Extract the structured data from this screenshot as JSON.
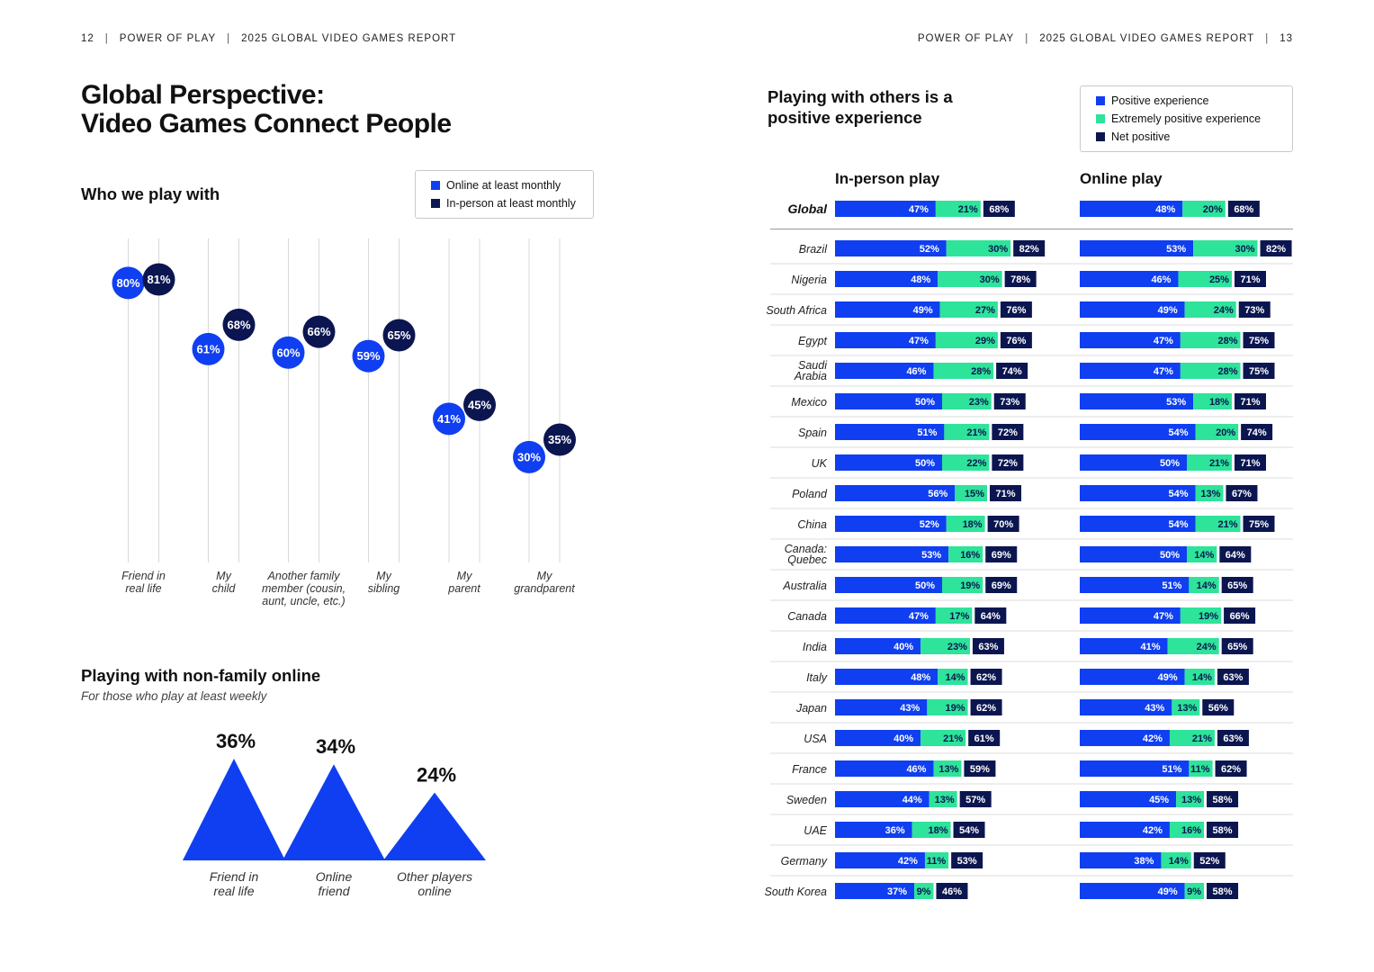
{
  "header": {
    "left_page": "12",
    "left_brand": "POWER OF PLAY",
    "left_report": "2025 GLOBAL VIDEO GAMES REPORT",
    "right_brand": "POWER OF PLAY",
    "right_report": "2025 GLOBAL VIDEO GAMES REPORT",
    "right_page": "13",
    "divider": "|"
  },
  "title": {
    "line1": "Global Perspective:",
    "line2": "Video Games Connect People"
  },
  "colors": {
    "blue": "#0f3ff0",
    "navy": "#0b1650",
    "green": "#2ee39a",
    "grid": "#d9d9d9"
  },
  "chart_data": [
    {
      "type": "scatter",
      "title": "Who we play with",
      "legend": [
        "Online at least monthly",
        "In-person at least monthly"
      ],
      "categories": [
        [
          "Friend in",
          "real life"
        ],
        [
          "My",
          "child"
        ],
        [
          "Another family",
          "member (cousin,",
          "aunt, uncle, etc.)"
        ],
        [
          "My",
          "sibling"
        ],
        [
          "My",
          "parent"
        ],
        [
          "My",
          "grandparent"
        ]
      ],
      "series": [
        {
          "name": "Online at least monthly",
          "values": [
            80,
            61,
            60,
            59,
            41,
            30
          ]
        },
        {
          "name": "In-person at least monthly",
          "values": [
            81,
            68,
            66,
            65,
            45,
            35
          ]
        }
      ],
      "unit": "%",
      "ylim": [
        0,
        100
      ]
    },
    {
      "type": "area",
      "title": "Playing with non-family online",
      "subtitle": "For those who play at least weekly",
      "categories": [
        [
          "Friend in",
          "real life"
        ],
        [
          "Online",
          "friend"
        ],
        [
          "Other players",
          "online"
        ]
      ],
      "values": [
        36,
        34,
        24
      ],
      "unit": "%"
    },
    {
      "type": "bar",
      "title": "Playing with others is a positive experience",
      "legend": [
        "Positive experience",
        "Extremely positive experience",
        "Net positive"
      ],
      "panels": [
        "In-person play",
        "Online play"
      ],
      "global": {
        "label": "Global",
        "in_person": {
          "positive": 47,
          "extremely": 21,
          "net": 68
        },
        "online": {
          "positive": 48,
          "extremely": 20,
          "net": 68
        }
      },
      "countries": [
        {
          "name": [
            "Brazil"
          ],
          "in_person": [
            52,
            30,
            82
          ],
          "online": [
            53,
            30,
            82
          ]
        },
        {
          "name": [
            "Nigeria"
          ],
          "in_person": [
            48,
            30,
            78
          ],
          "online": [
            46,
            25,
            71
          ]
        },
        {
          "name": [
            "South Africa"
          ],
          "in_person": [
            49,
            27,
            76
          ],
          "online": [
            49,
            24,
            73
          ]
        },
        {
          "name": [
            "Egypt"
          ],
          "in_person": [
            47,
            29,
            76
          ],
          "online": [
            47,
            28,
            75
          ]
        },
        {
          "name": [
            "Saudi",
            "Arabia"
          ],
          "in_person": [
            46,
            28,
            74
          ],
          "online": [
            47,
            28,
            75
          ]
        },
        {
          "name": [
            "Mexico"
          ],
          "in_person": [
            50,
            23,
            73
          ],
          "online": [
            53,
            18,
            71
          ]
        },
        {
          "name": [
            "Spain"
          ],
          "in_person": [
            51,
            21,
            72
          ],
          "online": [
            54,
            20,
            74
          ]
        },
        {
          "name": [
            "UK"
          ],
          "in_person": [
            50,
            22,
            72
          ],
          "online": [
            50,
            21,
            71
          ]
        },
        {
          "name": [
            "Poland"
          ],
          "in_person": [
            56,
            15,
            71
          ],
          "online": [
            54,
            13,
            67
          ]
        },
        {
          "name": [
            "China"
          ],
          "in_person": [
            52,
            18,
            70
          ],
          "online": [
            54,
            21,
            75
          ]
        },
        {
          "name": [
            "Canada:",
            "Quebec"
          ],
          "in_person": [
            53,
            16,
            69
          ],
          "online": [
            50,
            14,
            64
          ]
        },
        {
          "name": [
            "Australia"
          ],
          "in_person": [
            50,
            19,
            69
          ],
          "online": [
            51,
            14,
            65
          ]
        },
        {
          "name": [
            "Canada"
          ],
          "in_person": [
            47,
            17,
            64
          ],
          "online": [
            47,
            19,
            66
          ]
        },
        {
          "name": [
            "India"
          ],
          "in_person": [
            40,
            23,
            63
          ],
          "online": [
            41,
            24,
            65
          ]
        },
        {
          "name": [
            "Italy"
          ],
          "in_person": [
            48,
            14,
            62
          ],
          "online": [
            49,
            14,
            63
          ]
        },
        {
          "name": [
            "Japan"
          ],
          "in_person": [
            43,
            19,
            62
          ],
          "online": [
            43,
            13,
            56
          ]
        },
        {
          "name": [
            "USA"
          ],
          "in_person": [
            40,
            21,
            61
          ],
          "online": [
            42,
            21,
            63
          ]
        },
        {
          "name": [
            "France"
          ],
          "in_person": [
            46,
            13,
            59
          ],
          "online": [
            51,
            11,
            62
          ]
        },
        {
          "name": [
            "Sweden"
          ],
          "in_person": [
            44,
            13,
            57
          ],
          "online": [
            45,
            13,
            58
          ]
        },
        {
          "name": [
            "UAE"
          ],
          "in_person": [
            36,
            18,
            54
          ],
          "online": [
            42,
            16,
            58
          ]
        },
        {
          "name": [
            "Germany"
          ],
          "in_person": [
            42,
            11,
            53
          ],
          "online": [
            38,
            14,
            52
          ]
        },
        {
          "name": [
            "South Korea"
          ],
          "in_person": [
            37,
            9,
            46
          ],
          "online": [
            49,
            9,
            58
          ]
        }
      ],
      "unit": "%"
    }
  ]
}
